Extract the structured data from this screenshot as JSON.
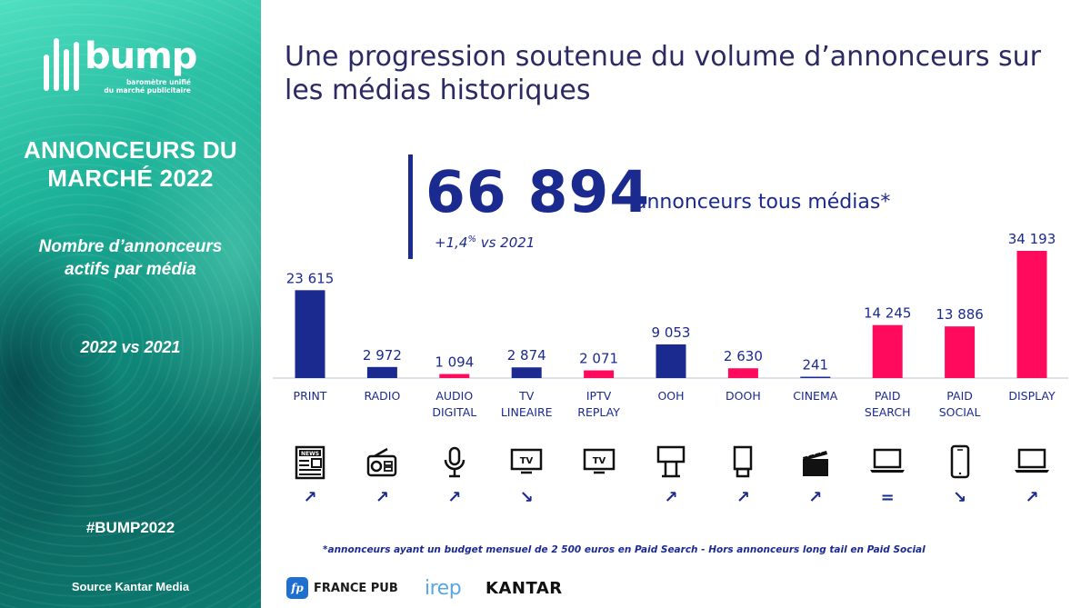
{
  "sidebar": {
    "logo_word": "bump",
    "logo_sub_1": "baromètre unifié",
    "logo_sub_2": "du marché publicitaire",
    "title_line1": "ANNONCEURS DU",
    "title_line2": "MARCHÉ 2022",
    "subtitle_line1": "Nombre d’annonceurs",
    "subtitle_line2": "actifs par média",
    "period": "2022 vs 2021",
    "hashtag": "#BUMP2022",
    "source": "Source Kantar Media"
  },
  "main": {
    "title_line1": "Une progression soutenue du volume d’annonceurs sur",
    "title_line2": "les médias historiques",
    "kpi_value": "66 894",
    "kpi_label": "annonceurs tous médias*",
    "kpi_growth_prefix": "+1,4",
    "kpi_growth_sup": "%",
    "kpi_growth_suffix": " vs 2021",
    "footnote": "*annonceurs ayant un budget mensuel de 2 500 euros en Paid Search - Hors annonceurs long tail en Paid Social"
  },
  "footer": {
    "fp_badge": "fp",
    "francepub": "FRANCE PUB",
    "irep": "irep",
    "kantar": "KANTAR"
  },
  "colors": {
    "traditional": "#1b2a8f",
    "digital": "#ff0a5c",
    "text": "#1b2a8f"
  },
  "chart_data": {
    "type": "bar",
    "title": "Nombre d’annonceurs actifs par média",
    "xlabel": "",
    "ylabel": "",
    "ylim": [
      0,
      34193
    ],
    "categories": [
      [
        "PRINT"
      ],
      [
        "RADIO"
      ],
      [
        "AUDIO",
        "DIGITAL"
      ],
      [
        "TV",
        "LINEAIRE"
      ],
      [
        "IPTV",
        "REPLAY"
      ],
      [
        "OOH"
      ],
      [
        "DOOH"
      ],
      [
        "CINEMA"
      ],
      [
        "PAID",
        "SEARCH"
      ],
      [
        "PAID",
        "SOCIAL"
      ],
      [
        "DISPLAY"
      ]
    ],
    "values": [
      23615,
      2972,
      1094,
      2874,
      2071,
      9053,
      2630,
      241,
      14245,
      13886,
      34193
    ],
    "value_labels": [
      "23 615",
      "2 972",
      "1 094",
      "2 874",
      "2 071",
      "9 053",
      "2 630",
      "241",
      "14 245",
      "13 886",
      "34 193"
    ],
    "bar_colors": [
      "traditional",
      "traditional",
      "digital",
      "traditional",
      "digital",
      "traditional",
      "digital",
      "traditional",
      "digital",
      "digital",
      "digital"
    ],
    "icons": [
      "newspaper-icon",
      "radio-icon",
      "microphone-icon",
      "tv-icon",
      "tv-icon",
      "billboard-icon",
      "digital-screen-icon",
      "clapperboard-icon",
      "laptop-icon",
      "smartphone-icon",
      "laptop-icon"
    ],
    "trends": [
      "↗",
      "↗",
      "↗",
      "↘",
      "",
      "↗",
      "↗",
      "↗",
      "=",
      "↘",
      "↗"
    ]
  }
}
